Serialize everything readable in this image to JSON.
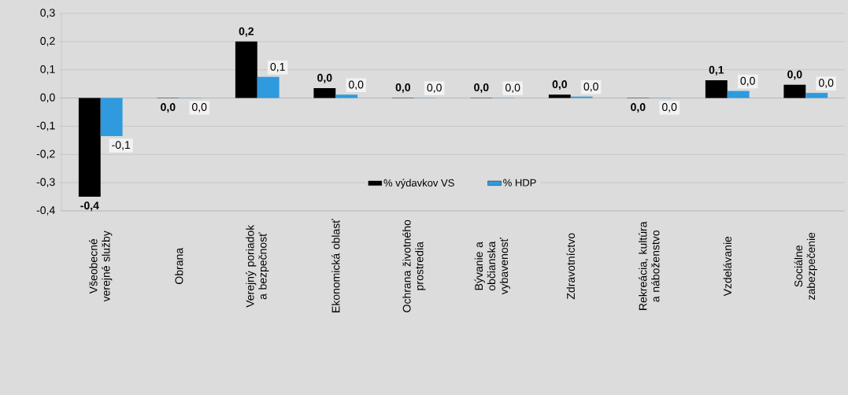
{
  "chart_data": {
    "type": "bar",
    "categories": [
      "Všeobecné verejné služby",
      "Obrana",
      "Verejný poriadok a bezpečnosť",
      "Ekonomická oblasť",
      "Ochrana životného prostredia",
      "Bývanie a občianska vybavenosť",
      "Zdravotníctvo",
      "Rekreácia, kultúra a náboženstvo",
      "Vzdelávanie",
      "Sociálne zabezpečenie"
    ],
    "series": [
      {
        "name": "% výdavkov VS",
        "color": "#000000",
        "values": [
          -0.35,
          -0.001,
          0.2,
          0.035,
          0.001,
          0.001,
          0.012,
          -0.001,
          0.063,
          0.047
        ],
        "value_labels": [
          "-0,4",
          "0,0",
          "0,2",
          "0,0",
          "0,0",
          "0,0",
          "0,0",
          "0,0",
          "0,1",
          "0,0"
        ]
      },
      {
        "name": "% HDP",
        "color": "#2f9ade",
        "values": [
          -0.135,
          -0.001,
          0.075,
          0.012,
          0.001,
          0.001,
          0.005,
          -0.001,
          0.025,
          0.018
        ],
        "value_labels": [
          "-0,1",
          "0,0",
          "0,1",
          "0,0",
          "0,0",
          "0,0",
          "0,0",
          "0,0",
          "0,0",
          "0,0"
        ]
      }
    ],
    "ylim": [
      -0.4,
      0.3
    ],
    "yticks": [
      {
        "value": -0.4,
        "label": "-0,4"
      },
      {
        "value": -0.3,
        "label": "-0,3"
      },
      {
        "value": -0.2,
        "label": "-0,2"
      },
      {
        "value": -0.1,
        "label": "-0,1"
      },
      {
        "value": 0.0,
        "label": "0,0"
      },
      {
        "value": 0.1,
        "label": "0,1"
      },
      {
        "value": 0.2,
        "label": "0,2"
      },
      {
        "value": 0.3,
        "label": "0,3"
      }
    ],
    "grid": "y",
    "legend": "bottom"
  }
}
